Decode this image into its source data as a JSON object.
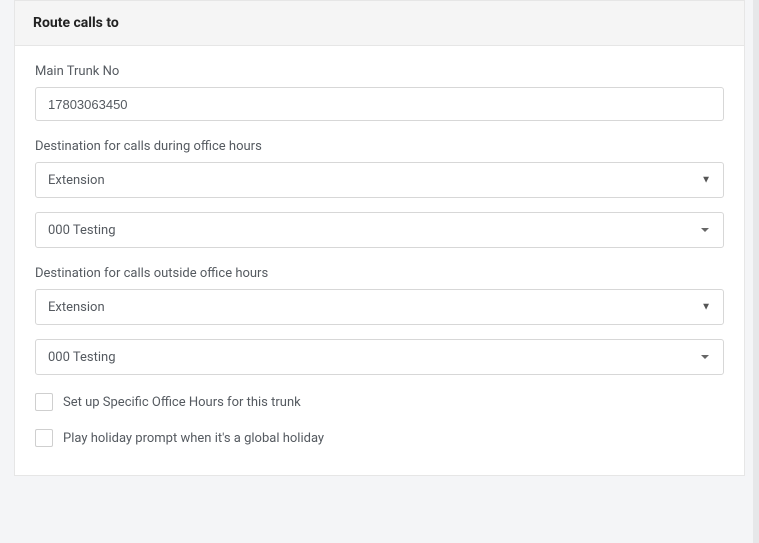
{
  "colors": {
    "page_bg": "#f4f5f7",
    "panel_bg": "#ffffff",
    "panel_border": "#e6e6e6",
    "heading_bg": "#f5f5f5",
    "text_primary": "#222222",
    "text_secondary": "#555a60",
    "input_border": "#d7d7d7"
  },
  "panel": {
    "title": "Route calls to"
  },
  "mainTrunk": {
    "label": "Main Trunk No",
    "value": "17803063450"
  },
  "duringHours": {
    "label": "Destination for calls during office hours",
    "type": "Extension",
    "value": "000 Testing"
  },
  "outsideHours": {
    "label": "Destination for calls outside office hours",
    "type": "Extension",
    "value": "000 Testing"
  },
  "checkboxes": {
    "specificHours": {
      "label": "Set up Specific Office Hours for this trunk",
      "checked": false
    },
    "holidayPrompt": {
      "label": "Play holiday prompt when it's a global holiday",
      "checked": false
    }
  }
}
